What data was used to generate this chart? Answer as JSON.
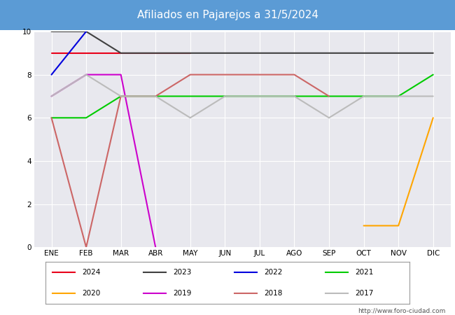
{
  "title": "Afiliados en Pajarejos a 31/5/2024",
  "title_bg_color": "#5b9bd5",
  "plot_bg_color": "#e8e8ee",
  "months": [
    "ENE",
    "FEB",
    "MAR",
    "ABR",
    "MAY",
    "JUN",
    "JUL",
    "AGO",
    "SEP",
    "OCT",
    "NOV",
    "DIC"
  ],
  "ylim": [
    0,
    10
  ],
  "yticks": [
    0,
    2,
    4,
    6,
    8,
    10
  ],
  "series": {
    "2024": {
      "color": "#e8001a",
      "data": [
        9,
        9,
        9,
        9,
        9,
        null,
        null,
        null,
        null,
        null,
        null,
        null
      ]
    },
    "2023": {
      "color": "#404040",
      "data": [
        10,
        10,
        9,
        9,
        9,
        9,
        9,
        9,
        9,
        9,
        9,
        9
      ]
    },
    "2022": {
      "color": "#0000dd",
      "data": [
        8,
        10,
        null,
        null,
        null,
        null,
        null,
        null,
        null,
        null,
        null,
        null
      ]
    },
    "2021": {
      "color": "#00cc00",
      "data": [
        6,
        6,
        7,
        7,
        7,
        7,
        7,
        7,
        7,
        7,
        7,
        8
      ]
    },
    "2020": {
      "color": "#ffa500",
      "data": [
        null,
        null,
        null,
        null,
        null,
        null,
        null,
        null,
        null,
        1,
        1,
        6
      ]
    },
    "2019": {
      "color": "#cc00cc",
      "data": [
        7,
        8,
        8,
        0,
        null,
        null,
        null,
        null,
        null,
        null,
        null,
        null
      ]
    },
    "2018": {
      "color": "#cc6666",
      "data": [
        6,
        0,
        7,
        7,
        8,
        8,
        8,
        8,
        7,
        null,
        null,
        null
      ]
    },
    "2017": {
      "color": "#bbbbbb",
      "data": [
        7,
        8,
        7,
        7,
        6,
        7,
        7,
        7,
        6,
        7,
        7,
        7
      ]
    }
  },
  "legend_order": [
    "2024",
    "2023",
    "2022",
    "2021",
    "2020",
    "2019",
    "2018",
    "2017"
  ],
  "watermark": "http://www.foro-ciudad.com",
  "title_fontsize": 11,
  "tick_fontsize": 7.5
}
